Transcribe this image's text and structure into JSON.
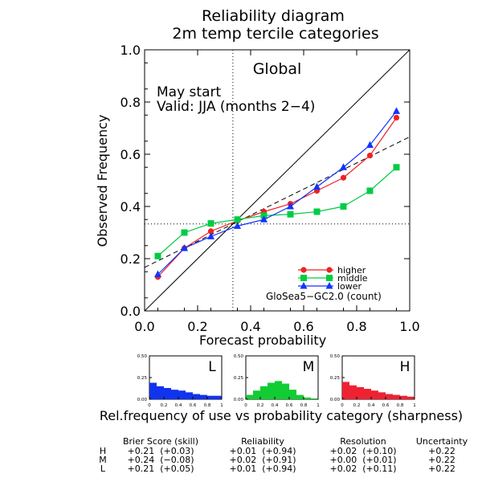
{
  "title_line1": "Reliability diagram",
  "title_line2": "2m temp tercile categories",
  "region": "Global",
  "start_label": "May start",
  "valid_label": "Valid: JJA (months 2−4)",
  "model_label": "GloSea5−GC2.0 (count)",
  "sharpness_caption": "Rel.frequency of use vs probability category (sharpness)",
  "chart_data": {
    "type": "line",
    "xlabel": "Forecast probability",
    "ylabel": "Observed Frequency",
    "xlim": [
      0,
      1
    ],
    "ylim": [
      0,
      1
    ],
    "x_ticks": [
      "0.0",
      "0.2",
      "0.4",
      "0.6",
      "0.8",
      "1.0"
    ],
    "y_ticks": [
      "0.0",
      "0.2",
      "0.4",
      "0.6",
      "0.8",
      "1.0"
    ],
    "x": [
      0.05,
      0.15,
      0.25,
      0.35,
      0.45,
      0.55,
      0.65,
      0.75,
      0.85,
      0.95
    ],
    "climatology": 0.333,
    "series": [
      {
        "name": "higher",
        "color": "#ee2222",
        "marker": "circle",
        "values": [
          0.13,
          0.24,
          0.305,
          0.345,
          0.38,
          0.41,
          0.46,
          0.51,
          0.595,
          0.74
        ]
      },
      {
        "name": "middle",
        "color": "#00cc44",
        "marker": "square",
        "values": [
          0.21,
          0.3,
          0.335,
          0.35,
          0.365,
          0.37,
          0.38,
          0.4,
          0.46,
          0.55
        ]
      },
      {
        "name": "lower",
        "color": "#1133ff",
        "marker": "triangle",
        "values": [
          0.14,
          0.24,
          0.285,
          0.325,
          0.35,
          0.4,
          0.475,
          0.55,
          0.635,
          0.765
        ]
      }
    ],
    "sharpness": {
      "ylim": [
        0,
        0.5
      ],
      "y_ticks": [
        "0.00",
        "0.25",
        "0.50"
      ],
      "x_ticks": [
        "0",
        "0.2",
        "0.4",
        "0.6",
        "0.8",
        "1"
      ],
      "panels": [
        {
          "label": "L",
          "color": "#1133ee",
          "values": [
            0.19,
            0.15,
            0.13,
            0.11,
            0.1,
            0.08,
            0.06,
            0.05,
            0.04,
            0.04
          ]
        },
        {
          "label": "M",
          "color": "#11cc33",
          "values": [
            0.05,
            0.1,
            0.15,
            0.19,
            0.21,
            0.18,
            0.11,
            0.05,
            0.02,
            0.01
          ]
        },
        {
          "label": "H",
          "color": "#ee2233",
          "values": [
            0.2,
            0.16,
            0.14,
            0.12,
            0.1,
            0.08,
            0.06,
            0.05,
            0.04,
            0.03
          ]
        }
      ]
    }
  },
  "scores": {
    "headers": [
      "Brier Score (skill)",
      "Reliability",
      "Resolution",
      "Uncertainty"
    ],
    "rows": [
      {
        "cat": "H",
        "color": "#ee2222",
        "cells": [
          "+0.21  (+0.03)",
          "+0.01  (+0.94)",
          "+0.02  (+0.10)",
          "+0.22"
        ]
      },
      {
        "cat": "M",
        "color": "#00cc44",
        "cells": [
          "+0.24  (−0.08)",
          "+0.02  (+0.91)",
          "+0.00  (+0.01)",
          "+0.22"
        ]
      },
      {
        "cat": "L",
        "color": "#1133ff",
        "cells": [
          "+0.21  (+0.05)",
          "+0.01  (+0.94)",
          "+0.02  (+0.11)",
          "+0.22"
        ]
      }
    ]
  }
}
